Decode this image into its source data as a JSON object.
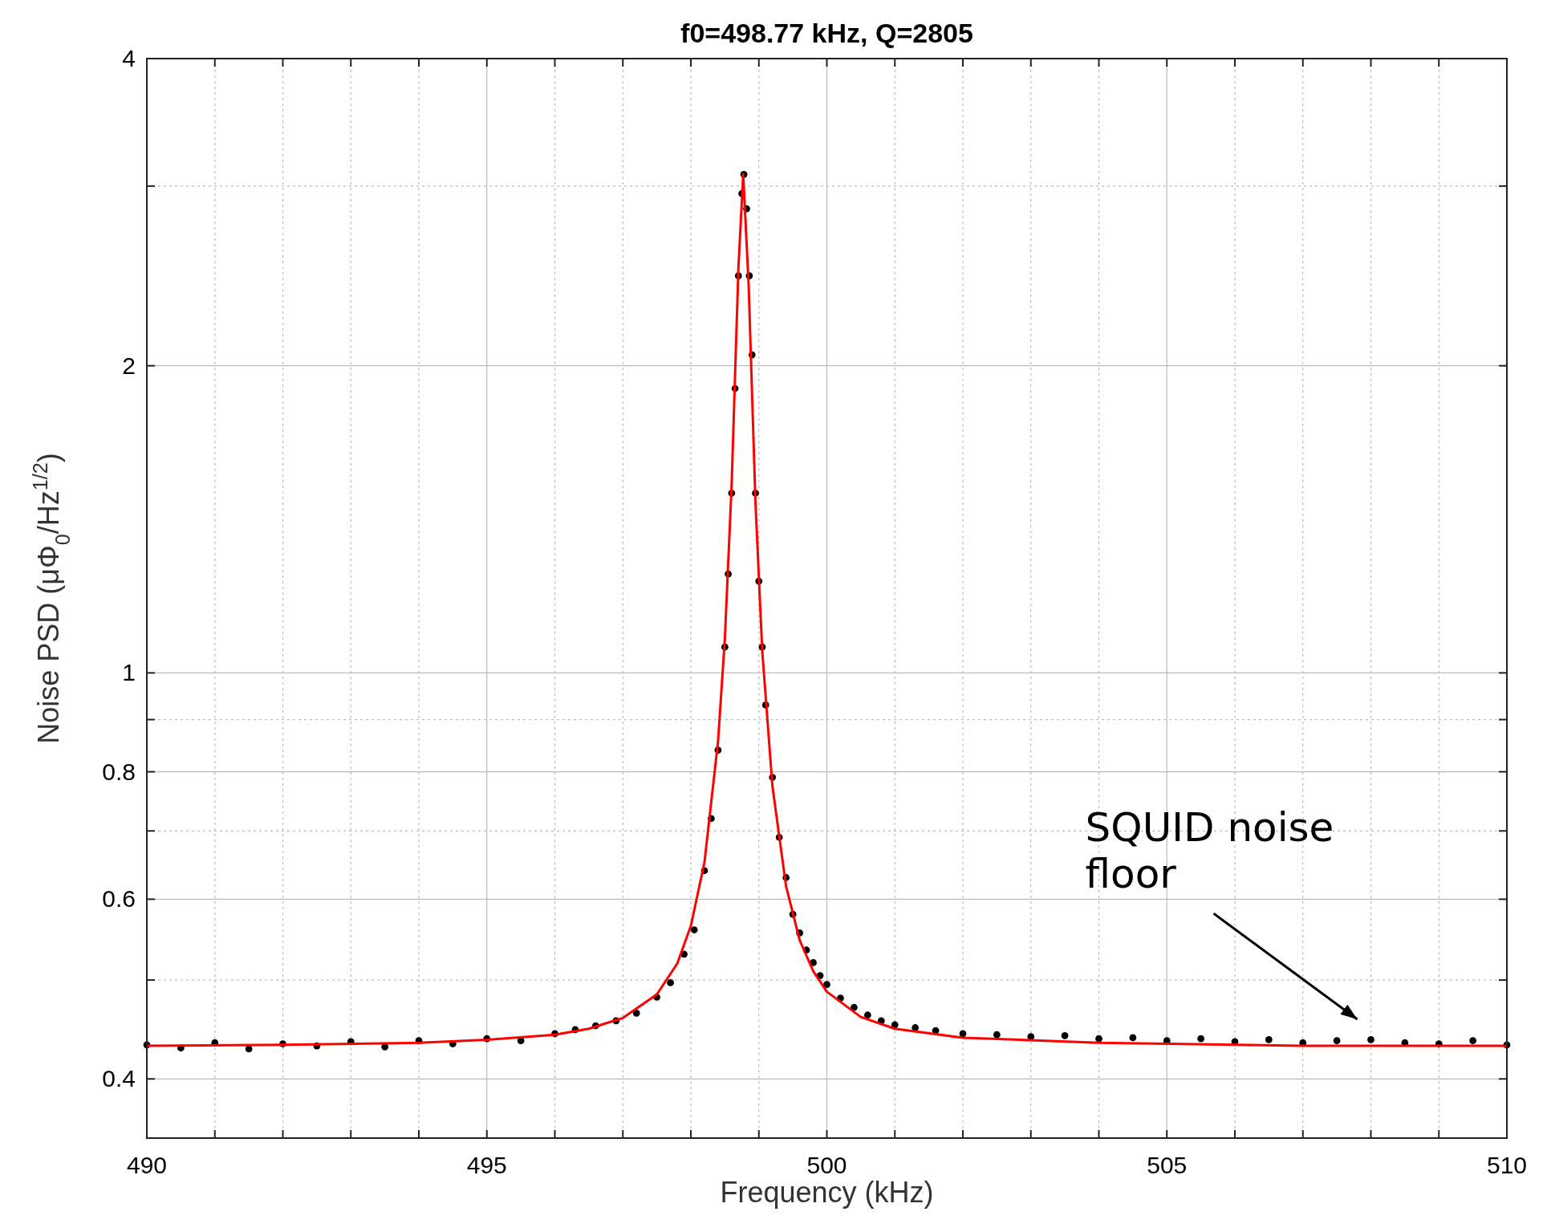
{
  "chart_data": {
    "type": "scatter",
    "title": "f0=498.77 kHz, Q=2805",
    "xlabel": "Frequency (kHz)",
    "ylabel": "Noise PSD (μΦ$_{0}$/Hz$^{1/2}$)",
    "log": "y",
    "grid": true,
    "xlim": [
      490,
      510
    ],
    "ylim": [
      0.35,
      4
    ],
    "xticks": [
      490,
      {
        "value": 491,
        "label": null
      },
      {
        "value": 492,
        "label": null
      },
      {
        "value": 493,
        "label": null
      },
      {
        "value": 494,
        "label": null
      },
      495,
      {
        "value": 496,
        "label": null
      },
      {
        "value": 497,
        "label": null
      },
      {
        "value": 498,
        "label": null
      },
      {
        "value": 499,
        "label": null
      },
      500,
      {
        "value": 501,
        "label": null
      },
      {
        "value": 502,
        "label": null
      },
      {
        "value": 503,
        "label": null
      },
      {
        "value": 504,
        "label": null
      },
      505,
      {
        "value": 506,
        "label": null
      },
      {
        "value": 507,
        "label": null
      },
      {
        "value": 508,
        "label": null
      },
      {
        "value": 509,
        "label": null
      },
      510
    ],
    "yticks": [
      0.4,
      {
        "value": 0.5,
        "label": null
      },
      0.6,
      {
        "value": 0.7,
        "label": null
      },
      0.8,
      {
        "value": 0.9,
        "label": null
      },
      1,
      2,
      {
        "value": 3,
        "label": null
      },
      4
    ],
    "series": [
      {
        "color": "#000000",
        "marker": "circle",
        "x": [
          490,
          490.5,
          491,
          491.5,
          492,
          492.5,
          493,
          493.5,
          494,
          494.5,
          495,
          495.5,
          496,
          496.3,
          496.6,
          496.9,
          497.2,
          497.5,
          497.7,
          497.9,
          498.05,
          498.2,
          498.3,
          498.4,
          498.5,
          498.55,
          498.6,
          498.65,
          498.7,
          498.75,
          498.78,
          498.82,
          498.86,
          498.9,
          498.95,
          499,
          499.05,
          499.1,
          499.2,
          499.3,
          499.4,
          499.5,
          499.6,
          499.7,
          499.8,
          499.9,
          500,
          500.2,
          500.4,
          500.6,
          500.8,
          501,
          501.3,
          501.6,
          502,
          502.5,
          503,
          503.5,
          504,
          504.5,
          505,
          505.5,
          506,
          506.5,
          507,
          507.5,
          508,
          508.5,
          509,
          509.5,
          510
        ],
        "values": [
          0.432,
          0.429,
          0.434,
          0.428,
          0.433,
          0.431,
          0.435,
          0.43,
          0.436,
          0.433,
          0.438,
          0.436,
          0.443,
          0.447,
          0.451,
          0.456,
          0.464,
          0.481,
          0.497,
          0.53,
          0.56,
          0.64,
          0.72,
          0.84,
          1.06,
          1.25,
          1.5,
          1.9,
          2.45,
          2.95,
          3.08,
          2.85,
          2.45,
          2.05,
          1.5,
          1.23,
          1.06,
          0.93,
          0.79,
          0.69,
          0.63,
          0.58,
          0.556,
          0.535,
          0.52,
          0.505,
          0.495,
          0.48,
          0.47,
          0.462,
          0.456,
          0.452,
          0.449,
          0.446,
          0.443,
          0.442,
          0.44,
          0.441,
          0.438,
          0.439,
          0.436,
          0.438,
          0.435,
          0.437,
          0.434,
          0.436,
          0.437,
          0.434,
          0.433,
          0.436,
          0.432
        ]
      },
      {
        "type": "line",
        "color": "#ff0000",
        "x": [
          490,
          492,
          494,
          495,
          496,
          496.5,
          497,
          497.5,
          497.8,
          498,
          498.2,
          498.4,
          498.5,
          498.6,
          498.7,
          498.77,
          498.85,
          498.95,
          499.05,
          499.2,
          499.4,
          499.6,
          499.8,
          500,
          500.5,
          501,
          502,
          504,
          507,
          510
        ],
        "values": [
          0.431,
          0.432,
          0.434,
          0.437,
          0.442,
          0.448,
          0.459,
          0.484,
          0.519,
          0.565,
          0.652,
          0.857,
          1.08,
          1.53,
          2.5,
          3.08,
          2.4,
          1.47,
          1.05,
          0.774,
          0.618,
          0.547,
          0.51,
          0.487,
          0.46,
          0.448,
          0.439,
          0.434,
          0.431,
          0.431
        ]
      }
    ],
    "annotations": [
      "SQUID noise floor"
    ]
  }
}
